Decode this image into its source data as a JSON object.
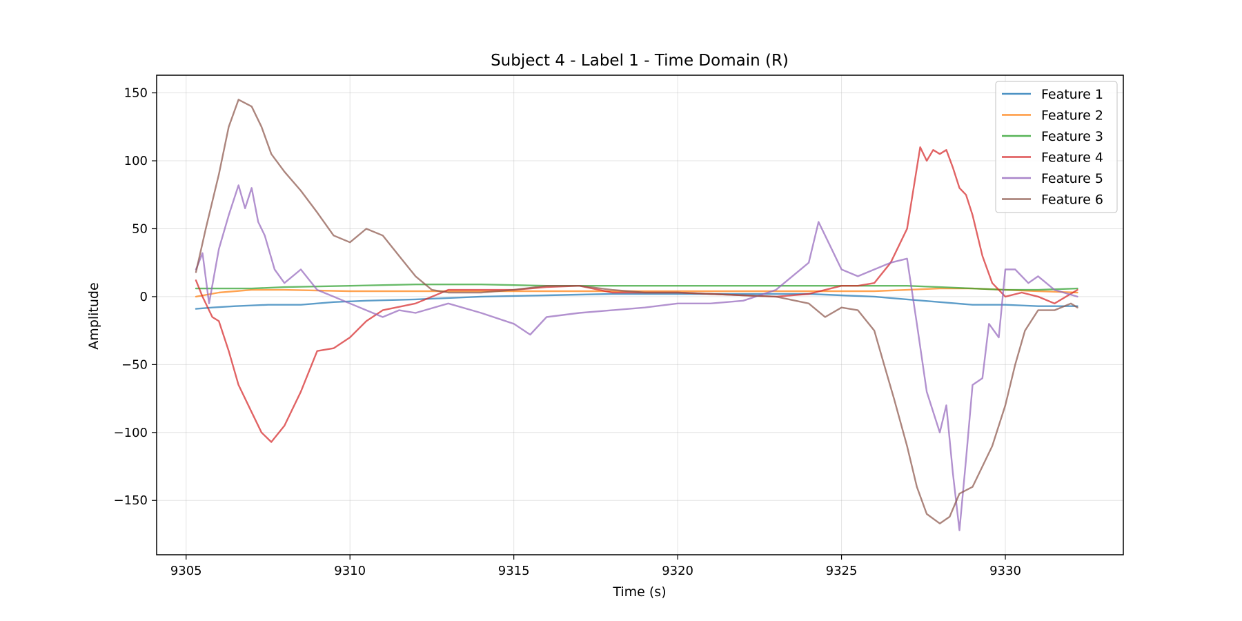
{
  "chart_data": {
    "type": "line",
    "title": "Subject 4 - Label 1 - Time Domain (R)",
    "xlabel": "Time (s)",
    "ylabel": "Amplitude",
    "xlim": [
      9304.1,
      9333.6
    ],
    "ylim": [
      -190,
      163
    ],
    "xticks": [
      9305,
      9310,
      9315,
      9320,
      9325,
      9330
    ],
    "yticks": [
      -150,
      -100,
      -50,
      0,
      50,
      100,
      150
    ],
    "ytick_labels": [
      "−150",
      "−100",
      "−50",
      "0",
      "50",
      "100",
      "150"
    ],
    "grid": true,
    "legend_position": "top-right",
    "series": [
      {
        "name": "Feature 1",
        "color": "#1f77b4",
        "x": [
          9305.3,
          9305.8,
          9306.5,
          9307.5,
          9308.5,
          9309.5,
          9310.5,
          9312,
          9314,
          9316,
          9318,
          9320,
          9322,
          9324,
          9325,
          9326,
          9327,
          9328,
          9329,
          9330,
          9331,
          9332.2
        ],
        "y": [
          -9,
          -8,
          -7,
          -6,
          -6,
          -4,
          -3,
          -2,
          0,
          1,
          2,
          2,
          2,
          2,
          1,
          0,
          -2,
          -4,
          -6,
          -6,
          -7,
          -7
        ]
      },
      {
        "name": "Feature 2",
        "color": "#ff7f0e",
        "x": [
          9305.3,
          9306,
          9307,
          9308,
          9310,
          9312,
          9314,
          9316,
          9318,
          9320,
          9322,
          9324,
          9326,
          9327,
          9328,
          9329,
          9330,
          9331,
          9332.2
        ],
        "y": [
          0,
          3,
          5,
          5,
          4,
          4,
          4,
          4,
          4,
          4,
          4,
          4,
          4,
          5,
          6,
          6,
          5,
          4,
          3
        ]
      },
      {
        "name": "Feature 3",
        "color": "#2ca02c",
        "x": [
          9305.3,
          9306,
          9307,
          9308,
          9310,
          9312,
          9314,
          9316,
          9318,
          9320,
          9322,
          9324,
          9326,
          9327,
          9328,
          9329,
          9330,
          9331,
          9332.2
        ],
        "y": [
          6,
          6,
          6,
          7,
          8,
          9,
          9,
          8,
          8,
          8,
          8,
          8,
          8,
          8,
          7,
          6,
          5,
          5,
          6
        ]
      },
      {
        "name": "Feature 4",
        "color": "#d62728",
        "x": [
          9305.3,
          9305.5,
          9305.8,
          9306,
          9306.3,
          9306.6,
          9307,
          9307.3,
          9307.6,
          9308,
          9308.5,
          9309,
          9309.5,
          9310,
          9310.5,
          9311,
          9312,
          9313,
          9314,
          9315,
          9316,
          9317,
          9318,
          9319,
          9320,
          9321,
          9322,
          9323,
          9324,
          9325,
          9325.5,
          9326,
          9326.5,
          9327,
          9327.2,
          9327.4,
          9327.6,
          9327.8,
          9328,
          9328.2,
          9328.4,
          9328.6,
          9328.8,
          9329,
          9329.3,
          9329.6,
          9330,
          9330.5,
          9331,
          9331.5,
          9332.2
        ],
        "y": [
          12,
          0,
          -15,
          -18,
          -40,
          -65,
          -85,
          -100,
          -107,
          -95,
          -70,
          -40,
          -38,
          -30,
          -18,
          -10,
          -5,
          5,
          5,
          5,
          7,
          8,
          3,
          3,
          3,
          2,
          1,
          0,
          2,
          8,
          8,
          10,
          25,
          50,
          80,
          110,
          100,
          108,
          105,
          108,
          95,
          80,
          75,
          60,
          30,
          10,
          0,
          3,
          0,
          -5,
          5
        ]
      },
      {
        "name": "Feature 5",
        "color": "#9467bd",
        "x": [
          9305.3,
          9305.5,
          9305.7,
          9306,
          9306.3,
          9306.6,
          9306.8,
          9307,
          9307.2,
          9307.4,
          9307.7,
          9308,
          9308.5,
          9309,
          9309.5,
          9310,
          9310.5,
          9311,
          9311.5,
          9312,
          9313,
          9314,
          9315,
          9315.5,
          9316,
          9317,
          9318,
          9319,
          9320,
          9321,
          9322,
          9323,
          9323.5,
          9324,
          9324.3,
          9324.6,
          9325,
          9325.5,
          9326,
          9326.5,
          9327,
          9327.3,
          9327.6,
          9328,
          9328.2,
          9328.4,
          9328.6,
          9328.8,
          9329,
          9329.3,
          9329.5,
          9329.8,
          9330,
          9330.3,
          9330.7,
          9331,
          9331.5,
          9332.2
        ],
        "y": [
          20,
          32,
          -5,
          35,
          60,
          82,
          65,
          80,
          55,
          45,
          20,
          10,
          20,
          5,
          0,
          -5,
          -10,
          -15,
          -10,
          -12,
          -5,
          -12,
          -20,
          -28,
          -15,
          -12,
          -10,
          -8,
          -5,
          -5,
          -3,
          5,
          15,
          25,
          55,
          40,
          20,
          15,
          20,
          25,
          28,
          -20,
          -70,
          -100,
          -80,
          -130,
          -172,
          -120,
          -65,
          -60,
          -20,
          -30,
          20,
          20,
          10,
          15,
          5,
          0
        ]
      },
      {
        "name": "Feature 6",
        "color": "#8c564b",
        "x": [
          9305.3,
          9305.6,
          9306,
          9306.3,
          9306.6,
          9307,
          9307.3,
          9307.6,
          9308,
          9308.5,
          9309,
          9309.5,
          9310,
          9310.5,
          9311,
          9311.5,
          9312,
          9312.5,
          9313,
          9314,
          9315,
          9316,
          9317,
          9318,
          9319,
          9320,
          9321,
          9322,
          9323,
          9324,
          9324.5,
          9325,
          9325.5,
          9326,
          9326.3,
          9326.6,
          9327,
          9327.3,
          9327.6,
          9328,
          9328.3,
          9328.6,
          9329,
          9329.3,
          9329.6,
          9330,
          9330.3,
          9330.6,
          9331,
          9331.5,
          9332,
          9332.2
        ],
        "y": [
          18,
          50,
          90,
          125,
          145,
          140,
          125,
          105,
          92,
          78,
          62,
          45,
          40,
          50,
          45,
          30,
          15,
          5,
          3,
          3,
          5,
          8,
          8,
          5,
          3,
          3,
          2,
          1,
          0,
          -5,
          -15,
          -8,
          -10,
          -25,
          -50,
          -75,
          -110,
          -140,
          -160,
          -167,
          -162,
          -145,
          -140,
          -125,
          -110,
          -80,
          -50,
          -25,
          -10,
          -10,
          -5,
          -8
        ]
      }
    ]
  }
}
